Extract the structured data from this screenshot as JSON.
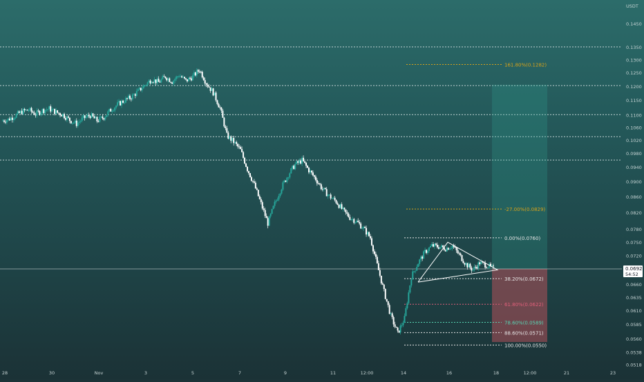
{
  "chart_data": {
    "type": "candlestick",
    "currency_label": "USDT",
    "y_axis": {
      "scale": "log",
      "range": [
        0.0515,
        0.15
      ],
      "ticks": [
        "0.1450",
        "0.1350",
        "0.1300",
        "0.1250",
        "0.1200",
        "0.1150",
        "0.1100",
        "0.1060",
        "0.1020",
        "0.0980",
        "0.0940",
        "0.0900",
        "0.0860",
        "0.0820",
        "0.0780",
        "0.0750",
        "0.0720",
        "0.0690",
        "0.0660",
        "0.0635",
        "0.0610",
        "0.0585",
        "0.0560",
        "0.0538",
        "0.0518"
      ]
    },
    "x_axis": {
      "ticks": [
        "28",
        "30",
        "Nov",
        "3",
        "5",
        "7",
        "9",
        "11",
        "12:00",
        "14",
        "16",
        "18",
        "12:00",
        "21",
        "23"
      ]
    },
    "current_price": {
      "value": "0.0692",
      "countdown": "54:52"
    },
    "horizontal_levels": [
      0.1352,
      0.1203,
      0.1102,
      0.1031,
      0.0961
    ],
    "fib_levels": [
      {
        "label": "161.80%(0.1282)",
        "value": 0.1282,
        "color": "#d8a21a"
      },
      {
        "label": "-27.00%(0.0829)",
        "value": 0.0829,
        "color": "#d8a21a"
      },
      {
        "label": "0.00%(0.0760)",
        "value": 0.076,
        "color": "#e6e6e6"
      },
      {
        "label": "38.20%(0.0672)",
        "value": 0.0672,
        "color": "#e6e6e6"
      },
      {
        "label": "61.80%(0.0622)",
        "value": 0.0622,
        "color": "#e0607a"
      },
      {
        "label": "78.60%(0.0589)",
        "value": 0.0589,
        "color": "#58d6b4"
      },
      {
        "label": "88.60%(0.0571)",
        "value": 0.0571,
        "color": "#e6e6e6"
      },
      {
        "label": "100.00%(0.0550)",
        "value": 0.055,
        "color": "#e6e6e6"
      }
    ],
    "position_tool": {
      "entry": 0.0692,
      "target": 0.1206,
      "stop": 0.0555
    },
    "triangle_pattern": {
      "upper_start": 0.075,
      "lower_start": 0.0665,
      "apex": 0.069
    },
    "price_path": [
      0.1082,
      0.1086,
      0.1098,
      0.1112,
      0.1118,
      0.1104,
      0.1116,
      0.1122,
      0.111,
      0.1102,
      0.1084,
      0.1072,
      0.109,
      0.11,
      0.1082,
      0.1094,
      0.1118,
      0.1136,
      0.115,
      0.1162,
      0.1182,
      0.1205,
      0.1226,
      0.1215,
      0.1236,
      0.1218,
      0.1242,
      0.122,
      0.1236,
      0.1262,
      0.1212,
      0.1178,
      0.1124,
      0.1035,
      0.1015,
      0.099,
      0.0935,
      0.0892,
      0.0842,
      0.0794,
      0.0842,
      0.0885,
      0.092,
      0.0948,
      0.096,
      0.0932,
      0.0908,
      0.088,
      0.0862,
      0.0848,
      0.0825,
      0.0808,
      0.0798,
      0.0782,
      0.076,
      0.07,
      0.0646,
      0.06,
      0.057,
      0.0596,
      0.0676,
      0.0705,
      0.0728,
      0.0742,
      0.074,
      0.0736,
      0.0742,
      0.0722,
      0.0702,
      0.069,
      0.0705,
      0.07,
      0.0692
    ],
    "legend": null
  },
  "colors": {
    "up": "#26a69a",
    "down": "#ffffff",
    "text": "#c7d4d4",
    "grid": "#ffffff"
  }
}
